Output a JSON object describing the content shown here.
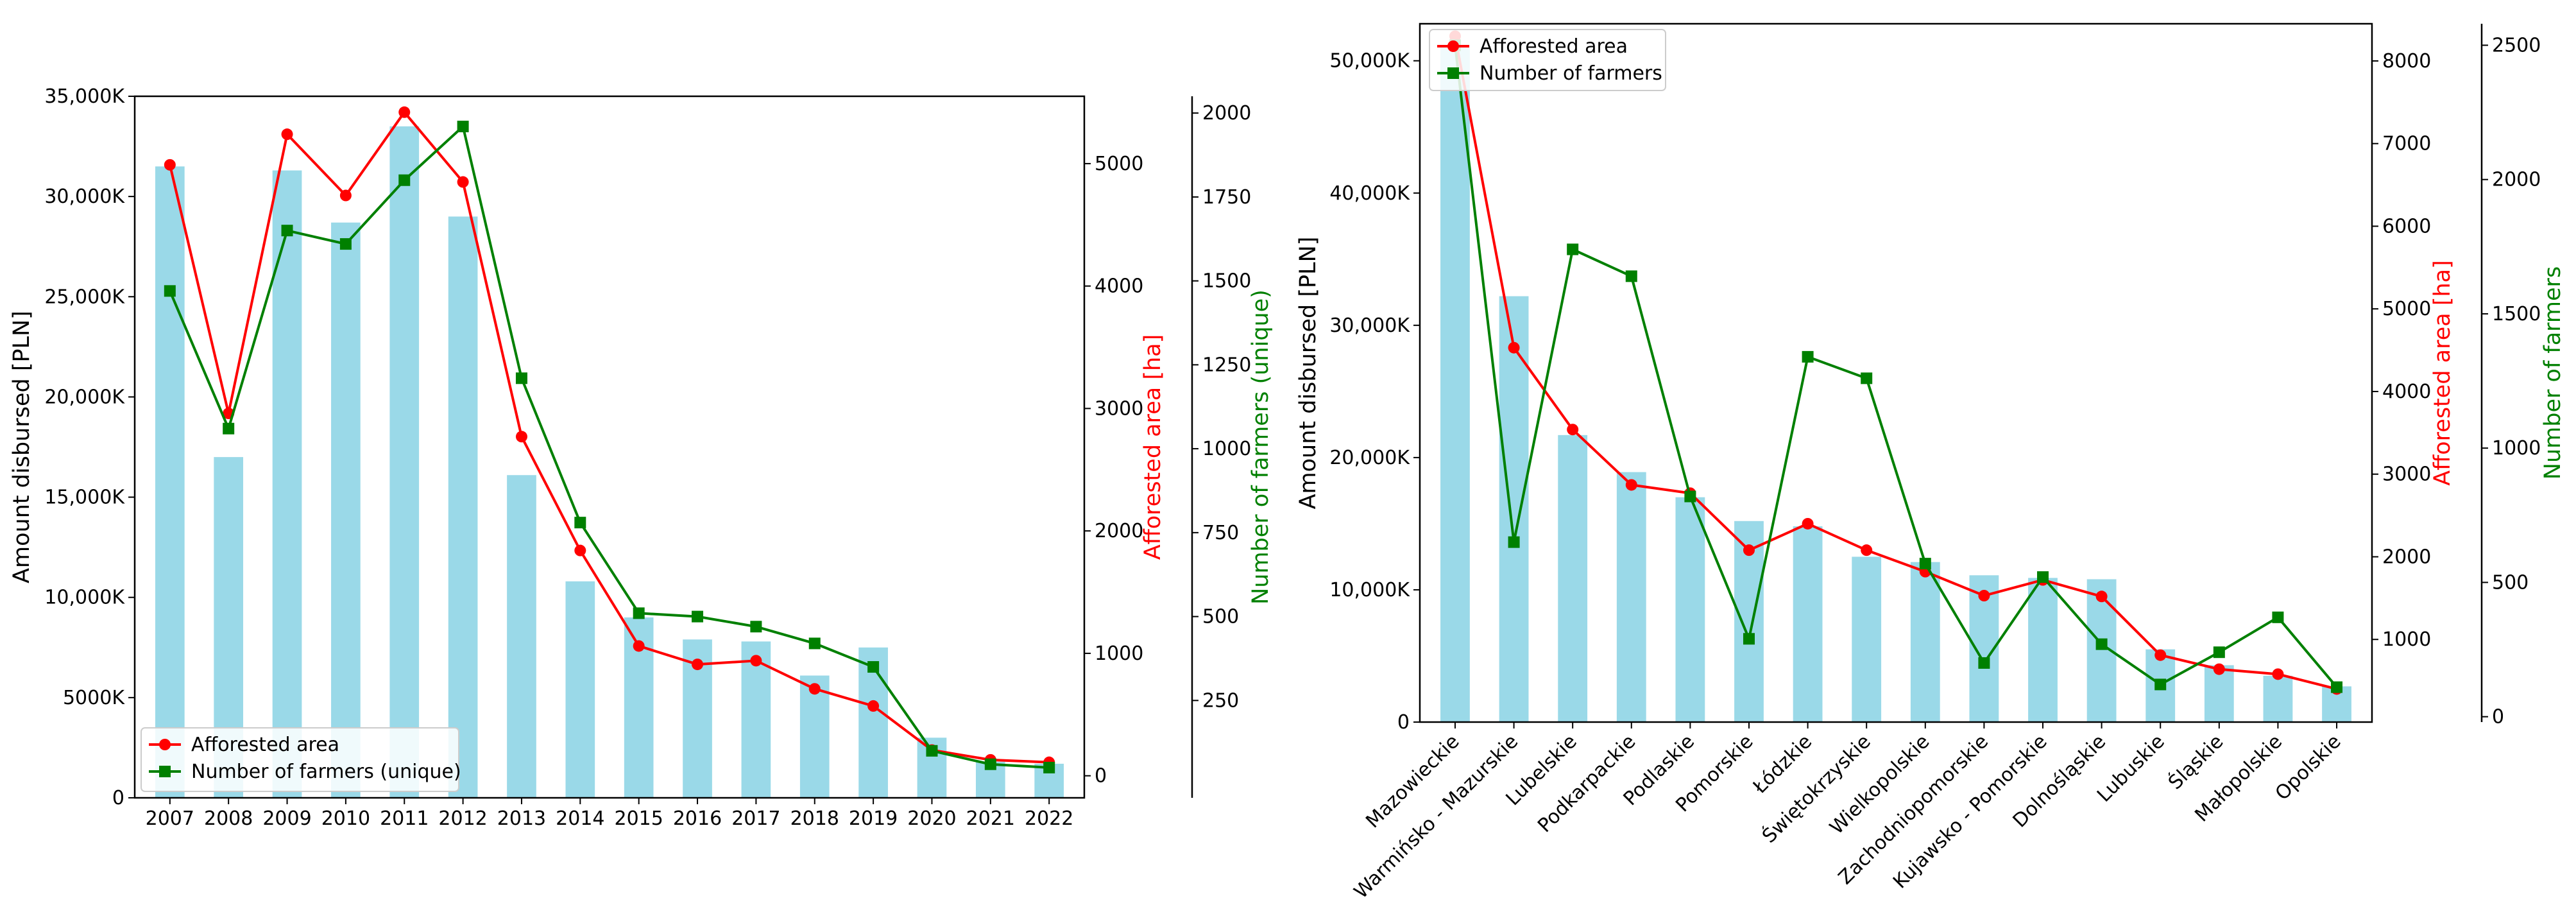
{
  "chart_data": [
    {
      "type": "bar",
      "categories": [
        "2007",
        "2008",
        "2009",
        "2010",
        "2011",
        "2012",
        "2013",
        "2014",
        "2015",
        "2016",
        "2017",
        "2018",
        "2019",
        "2020",
        "2021",
        "2022"
      ],
      "ylabel": "Amount disbursed [PLN]",
      "ylabel2": "Afforested area [ha]",
      "ylabel3": "Number of farmers (unique)",
      "ylabel2_color": "#ff0000",
      "ylabel3_color": "#008000",
      "ylim": [
        0,
        35000
      ],
      "ylim2": [
        -180,
        5550
      ],
      "ylim3": [
        -40,
        2050
      ],
      "yticks": [
        0,
        5000,
        10000,
        15000,
        20000,
        25000,
        30000,
        35000
      ],
      "ytick_labels": [
        "0",
        "5000K",
        "10,000K",
        "15,000K",
        "20,000K",
        "25,000K",
        "30,000K",
        "35,000K"
      ],
      "yticks2": [
        0,
        1000,
        2000,
        3000,
        4000,
        5000
      ],
      "yticks3": [
        250,
        500,
        750,
        1000,
        1250,
        1500,
        1750,
        2000
      ],
      "bar_color": "#9ad9e8",
      "values": [
        31500,
        17000,
        31300,
        28700,
        33500,
        29000,
        16100,
        10800,
        9000,
        7900,
        7800,
        6100,
        7500,
        3000,
        1800,
        1700
      ],
      "series": [
        {
          "name": "Afforested area",
          "axis": "right",
          "color": "#ff0000",
          "marker": "circle",
          "values": [
            4990,
            2960,
            5240,
            4740,
            5420,
            4850,
            2770,
            1840,
            1060,
            910,
            940,
            710,
            570,
            210,
            130,
            110
          ]
        },
        {
          "name": "Number of farmers (unique)",
          "axis": "right2",
          "color": "#008000",
          "marker": "square",
          "values": [
            1470,
            1060,
            1650,
            1610,
            1800,
            1960,
            1210,
            780,
            510,
            500,
            470,
            420,
            350,
            100,
            60,
            50
          ]
        }
      ],
      "legend": "lower-left",
      "grid": false
    },
    {
      "type": "bar",
      "categories": [
        "Mazowieckie",
        "Warmińsko - Mazurskie",
        "Lubelskie",
        "Podkarpackie",
        "Podlaskie",
        "Pomorskie",
        "Łódzkie",
        "Świętokrzyskie",
        "Wielkopolskie",
        "Zachodniopomorskie",
        "Kujawsko - Pomorskie",
        "Dolnośląskie",
        "Lubuskie",
        "Śląskie",
        "Małopolskie",
        "Opolskie"
      ],
      "ylabel": "Amount disbursed [PLN]",
      "ylabel2": "Afforested area [ha]",
      "ylabel3": "Number of farmers",
      "ylabel2_color": "#ff0000",
      "ylabel3_color": "#008000",
      "ylim": [
        0,
        52800
      ],
      "ylim2": [
        0,
        8450
      ],
      "ylim3": [
        -20,
        2580
      ],
      "yticks": [
        0,
        10000,
        20000,
        30000,
        40000,
        50000
      ],
      "ytick_labels": [
        "0",
        "10,000K",
        "20,000K",
        "30,000K",
        "40,000K",
        "50,000K"
      ],
      "yticks2": [
        1000,
        2000,
        3000,
        4000,
        5000,
        6000,
        7000,
        8000
      ],
      "yticks3": [
        0,
        500,
        1000,
        1500,
        2000,
        2500
      ],
      "bar_color": "#9ad9e8",
      "values": [
        51000,
        32200,
        21700,
        18900,
        17000,
        15200,
        14800,
        12500,
        12100,
        11100,
        10900,
        10800,
        5500,
        4300,
        3500,
        2700
      ],
      "series": [
        {
          "name": "Afforested area",
          "axis": "right",
          "color": "#ff0000",
          "marker": "circle",
          "values": [
            8300,
            4530,
            3540,
            2870,
            2770,
            2080,
            2400,
            2080,
            1820,
            1530,
            1720,
            1520,
            810,
            640,
            580,
            400
          ],
          "note_hidden": false
        },
        {
          "name": "Number of farmers",
          "axis": "right2",
          "color": "#008000",
          "marker": "square",
          "values": [
            2500,
            650,
            1740,
            1640,
            820,
            290,
            1340,
            1260,
            570,
            200,
            520,
            270,
            120,
            240,
            370,
            110
          ]
        }
      ],
      "legend": "upper-left",
      "grid": false
    }
  ]
}
